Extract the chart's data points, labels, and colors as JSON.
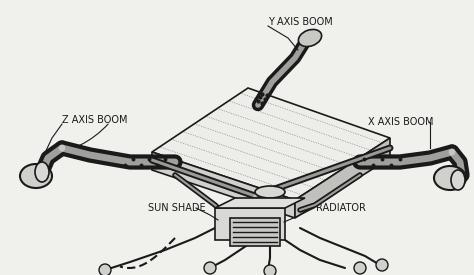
{
  "bg_color": "#f0f0ec",
  "line_color": "#1a1a1a",
  "fill_light": "#e8e8e4",
  "fill_mid": "#d8d8d4",
  "fill_dark": "#c8c8c4",
  "fill_white": "#f2f2ef",
  "labels": {
    "y_axis_boom": "Y AXIS BOOM",
    "z_axis_boom": "Z AXIS BOOM",
    "x_axis_boom": "X AXIS BOOM",
    "sun_shade": "SUN SHADE",
    "radiator": "RADIATOR"
  },
  "font_size": 7.0,
  "fig_width": 4.74,
  "fig_height": 2.75,
  "dpi": 100
}
